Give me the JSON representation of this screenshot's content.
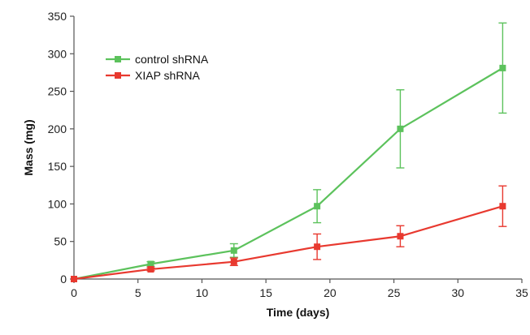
{
  "chart_data": {
    "type": "line",
    "title": "",
    "xlabel": "Time (days)",
    "ylabel": "Mass (mg)",
    "xlim": [
      0,
      35
    ],
    "ylim": [
      0,
      350
    ],
    "xticks": [
      0,
      5,
      10,
      15,
      20,
      25,
      30,
      35
    ],
    "yticks": [
      0,
      50,
      100,
      150,
      200,
      250,
      300,
      350
    ],
    "grid": false,
    "legend_position": "top-left",
    "series": [
      {
        "name": "control shRNA",
        "color": "#5cc25c",
        "marker": "square",
        "x": [
          0,
          6,
          12.5,
          19,
          25.5,
          33.5
        ],
        "y": [
          0,
          20,
          38,
          97,
          200,
          281
        ],
        "err": [
          0,
          3,
          9,
          22,
          52,
          60
        ]
      },
      {
        "name": "XIAP shRNA",
        "color": "#e8392f",
        "marker": "square",
        "x": [
          0,
          6,
          12.5,
          19,
          25.5,
          33.5
        ],
        "y": [
          0,
          13,
          23,
          43,
          57,
          97
        ],
        "err": [
          0,
          2,
          5,
          17,
          14,
          27
        ]
      }
    ]
  }
}
